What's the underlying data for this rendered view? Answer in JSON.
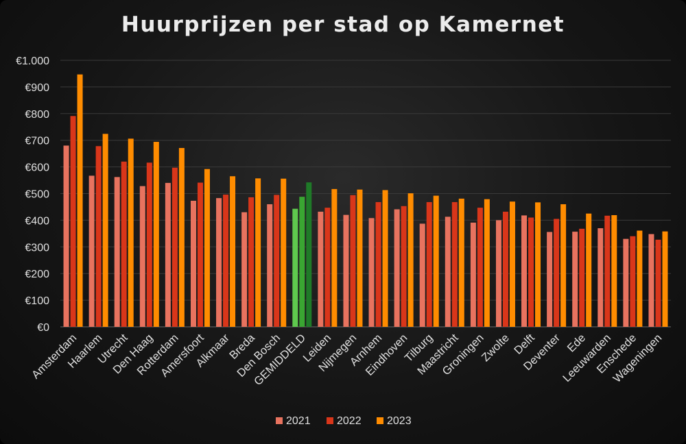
{
  "chart_data": {
    "type": "bar",
    "title": "Huurprijzen per stad op Kamernet",
    "xlabel": "",
    "ylabel": "",
    "ylim": [
      0,
      1000
    ],
    "yticks": [
      0,
      100,
      200,
      300,
      400,
      500,
      600,
      700,
      800,
      900,
      1000
    ],
    "ytick_labels": [
      "€0",
      "€100",
      "€200",
      "€300",
      "€400",
      "€500",
      "€600",
      "€700",
      "€800",
      "€900",
      "€1.000"
    ],
    "grid": true,
    "legend_position": "bottom",
    "categories": [
      "Amsterdam",
      "Haarlem",
      "Utrecht",
      "Den Haag",
      "Rotterdam",
      "Amersfoort",
      "Alkmaar",
      "Breda",
      "Den Bosch",
      "GEMIDDELD",
      "Leiden",
      "Nijmegen",
      "Arnhem",
      "Eindhoven",
      "Tilburg",
      "Maastricht",
      "Groningen",
      "Zwolte",
      "Delft",
      "Deventer",
      "Ede",
      "Leeuwarden",
      "Enschede",
      "Wageningen"
    ],
    "highlight_category": "GEMIDDELD",
    "series": [
      {
        "name": "2021",
        "color": "#e8735f",
        "highlight_color": "#5fc94e",
        "values": [
          680,
          567,
          562,
          528,
          540,
          473,
          483,
          430,
          460,
          443,
          432,
          420,
          408,
          441,
          387,
          413,
          391,
          400,
          418,
          356,
          357,
          370,
          330,
          348
        ]
      },
      {
        "name": "2022",
        "color": "#d9361a",
        "highlight_color": "#3aa632",
        "values": [
          791,
          678,
          620,
          616,
          597,
          541,
          496,
          486,
          495,
          488,
          447,
          494,
          468,
          453,
          468,
          468,
          447,
          432,
          410,
          405,
          368,
          417,
          340,
          327
        ]
      },
      {
        "name": "2023",
        "color": "#ff8c00",
        "highlight_color": "#1f7a28",
        "values": [
          947,
          724,
          706,
          694,
          671,
          592,
          565,
          557,
          556,
          542,
          517,
          515,
          513,
          501,
          492,
          481,
          479,
          470,
          467,
          460,
          425,
          419,
          361,
          358
        ]
      }
    ]
  }
}
